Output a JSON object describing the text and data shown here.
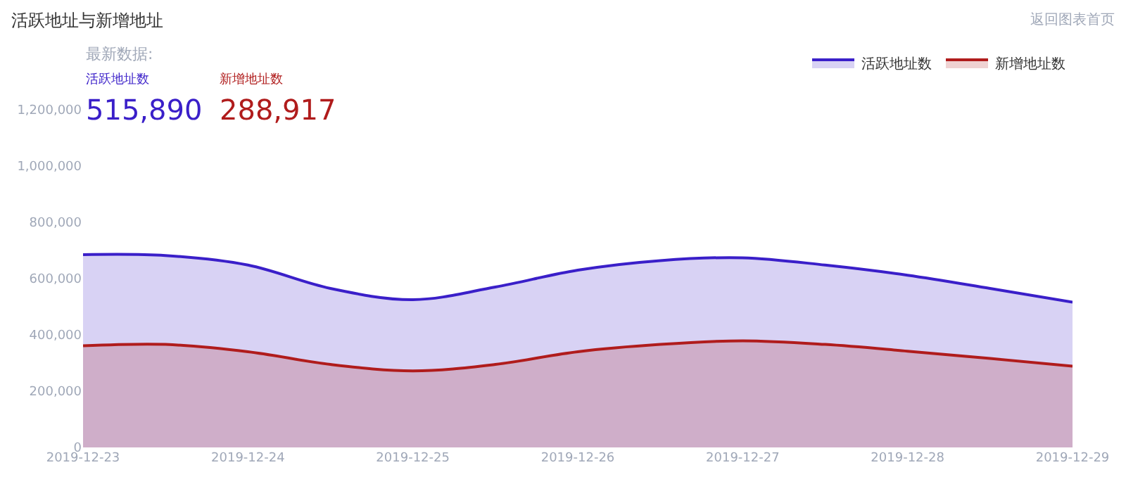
{
  "chart_data": {
    "type": "area",
    "title": "活跃地址与新增地址",
    "annotations": [
      "返回图表首页",
      "最新数据:",
      "活跃地址数",
      "515,890",
      "新增地址数",
      "288,917"
    ],
    "x": [
      "2019-12-23T00:00",
      "2019-12-23T12:00",
      "2019-12-24T00:00",
      "2019-12-24T12:00",
      "2019-12-25T00:00",
      "2019-12-25T12:00",
      "2019-12-26T00:00",
      "2019-12-26T12:00",
      "2019-12-27T00:00",
      "2019-12-27T12:00",
      "2019-12-28T00:00",
      "2019-12-28T12:00",
      "2019-12-29T00:00"
    ],
    "series": [
      {
        "name": "活跃地址数",
        "color": "#3a1fc9",
        "values": [
          685000,
          682000,
          648000,
          565000,
          525000,
          570000,
          630000,
          664000,
          674000,
          648000,
          612000,
          565000,
          515890
        ]
      },
      {
        "name": "新增地址数",
        "color": "#b01c1c",
        "values": [
          361000,
          366000,
          340000,
          295000,
          272000,
          295000,
          340000,
          366000,
          379000,
          366000,
          342000,
          316000,
          288917
        ]
      }
    ],
    "xlim": [
      "2019-12-23",
      "2019-12-29"
    ],
    "xticks": [
      "2019-12-23",
      "2019-12-24",
      "2019-12-25",
      "2019-12-26",
      "2019-12-27",
      "2019-12-28",
      "2019-12-29"
    ],
    "ylim": [
      0,
      1200000
    ],
    "yticks": [
      {
        "value": 0,
        "label": "0"
      },
      {
        "value": 200000,
        "label": "200,000"
      },
      {
        "value": 400000,
        "label": "400,000"
      },
      {
        "value": 600000,
        "label": "600,000"
      },
      {
        "value": 800000,
        "label": "800,000"
      },
      {
        "value": 1000000,
        "label": "1,000,000"
      },
      {
        "value": 1200000,
        "label": "1,200,000"
      }
    ],
    "grid": false,
    "legend": "top right",
    "marker": "none",
    "line_style": "solid"
  }
}
